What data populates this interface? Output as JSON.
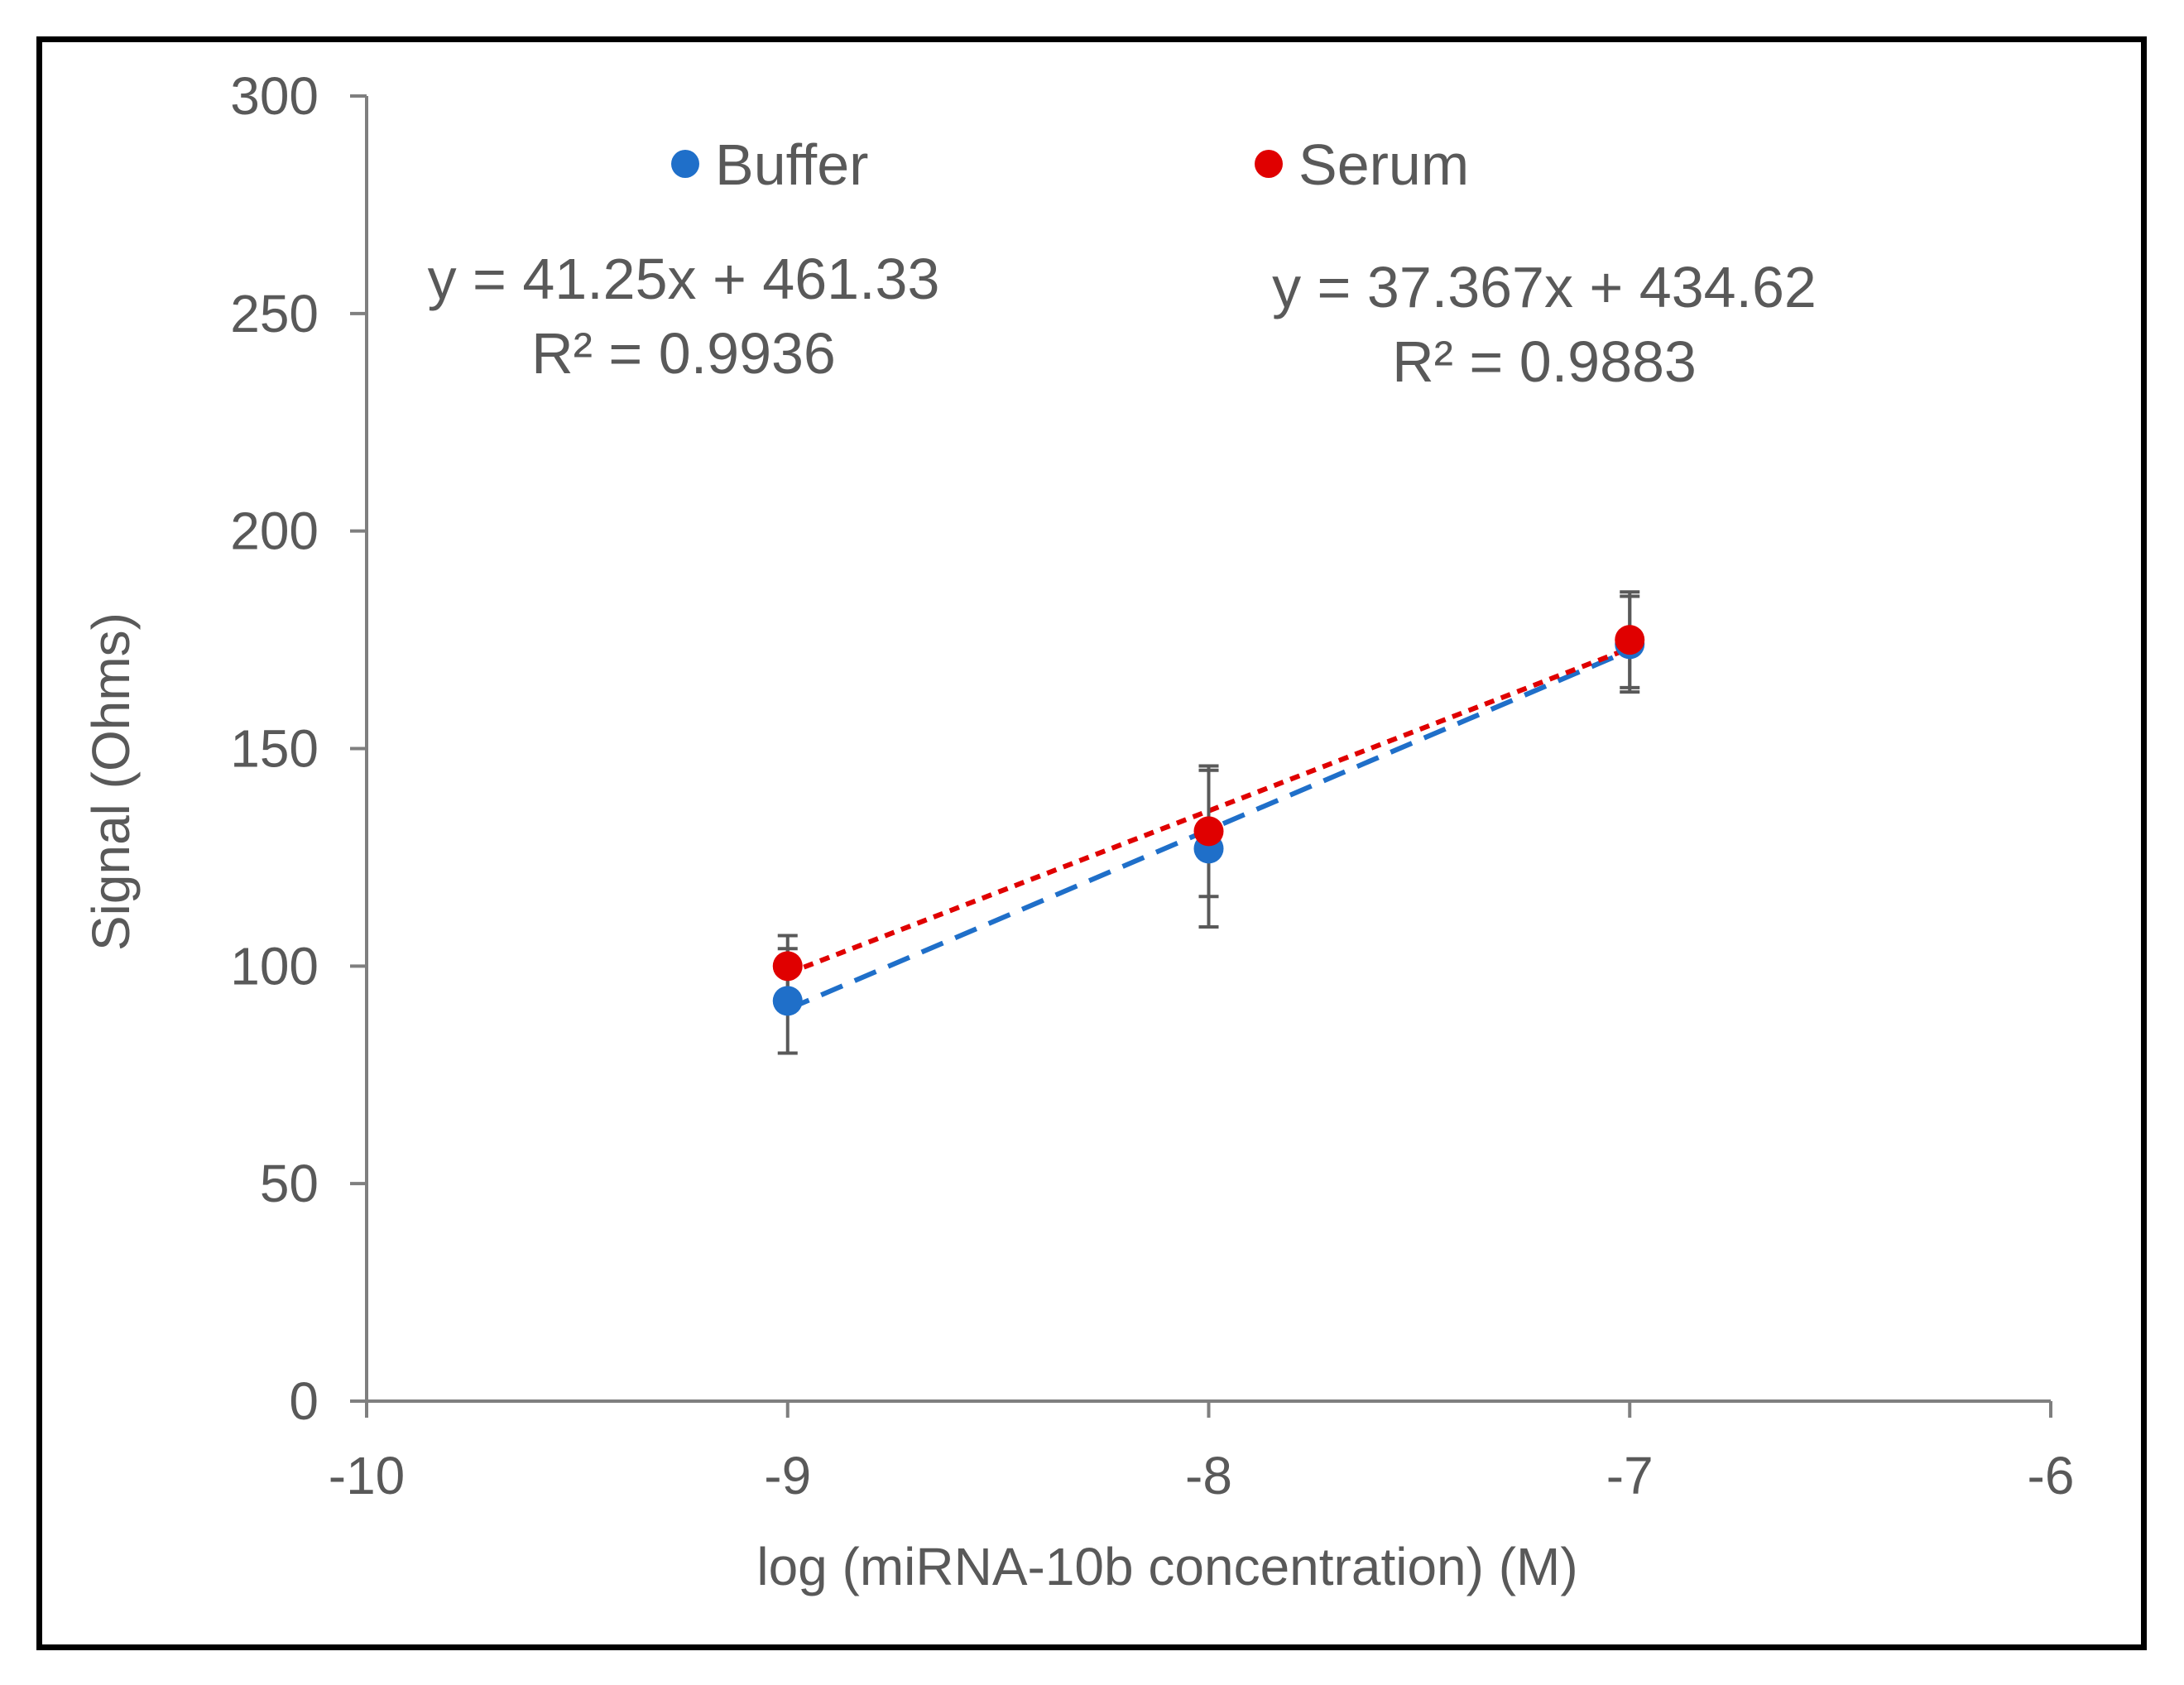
{
  "chart_data": {
    "type": "scatter",
    "title": "",
    "xlabel": "log (miRNA-10b concentration) (M)",
    "ylabel": "Signal (Ohms)",
    "xlim": [
      -10,
      -6
    ],
    "ylim": [
      0,
      300
    ],
    "x_ticks": [
      -10,
      -9,
      -8,
      -7,
      -6
    ],
    "y_ticks": [
      0,
      50,
      100,
      150,
      200,
      250,
      300
    ],
    "grid": false,
    "legend": "top",
    "series": [
      {
        "name": "Buffer",
        "color": "#1f6fc9",
        "x": [
          -9,
          -8,
          -7
        ],
        "y": [
          92,
          127,
          174
        ],
        "error": [
          12,
          18,
          11
        ],
        "trendline": {
          "slope": 41.25,
          "intercept": 461.33,
          "style": "dashed",
          "equation": "y = 41.25x + 461.33",
          "r2": "R² = 0.9936"
        }
      },
      {
        "name": "Serum",
        "color": "#e00000",
        "x": [
          -9,
          -8,
          -7
        ],
        "y": [
          100,
          131,
          175
        ],
        "error": [
          7,
          15,
          11
        ],
        "trendline": {
          "slope": 37.367,
          "intercept": 434.62,
          "style": "dotted",
          "equation": "y = 37.367x + 434.62",
          "r2": "R² = 0.9883"
        }
      }
    ]
  }
}
